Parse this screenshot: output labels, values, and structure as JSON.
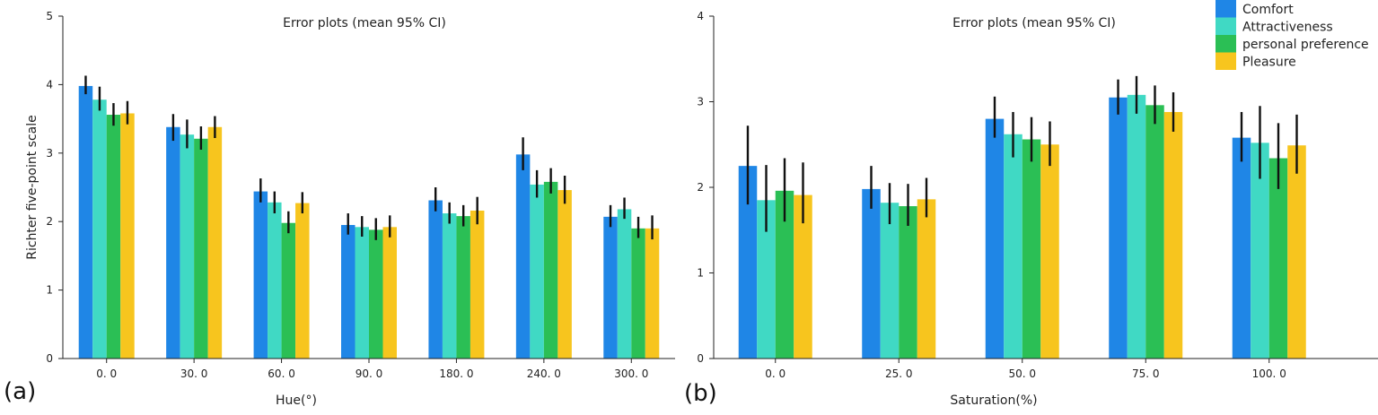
{
  "colors": {
    "Comfort": "#1f86e6",
    "Attractiveness": "#40d9c4",
    "personal preference": "#2bbf55",
    "Pleasure": "#f7c51e",
    "errorbar": "#111111",
    "axis": "#222222"
  },
  "panels": [
    {
      "label": "(a)"
    },
    {
      "label": "(b)"
    }
  ],
  "chart_data": [
    {
      "type": "bar",
      "title": "Error plots (mean 95% CI)",
      "xlabel": "Hue(°)",
      "ylabel": "Richter five-point scale",
      "ylim": [
        0,
        5
      ],
      "yticks": [
        "0",
        "1",
        "2",
        "3",
        "4",
        "5"
      ],
      "categories": [
        "0. 0",
        "30. 0",
        "60. 0",
        "90. 0",
        "180. 0",
        "240. 0",
        "300. 0"
      ],
      "series": [
        {
          "name": "Comfort",
          "values": [
            3.98,
            3.38,
            2.44,
            1.95,
            2.31,
            2.98,
            2.07
          ],
          "ci_low": [
            3.86,
            3.18,
            2.28,
            1.81,
            2.15,
            2.75,
            1.92
          ],
          "ci_high": [
            4.13,
            3.57,
            2.63,
            2.12,
            2.5,
            3.23,
            2.24
          ]
        },
        {
          "name": "Attractiveness",
          "values": [
            3.78,
            3.27,
            2.28,
            1.92,
            2.12,
            2.54,
            2.18
          ],
          "ci_low": [
            3.62,
            3.07,
            2.12,
            1.78,
            1.97,
            2.35,
            2.04
          ],
          "ci_high": [
            3.97,
            3.49,
            2.44,
            2.08,
            2.28,
            2.75,
            2.35
          ]
        },
        {
          "name": "personal preference",
          "values": [
            3.56,
            3.21,
            1.98,
            1.88,
            2.08,
            2.58,
            1.9
          ],
          "ci_low": [
            3.4,
            3.05,
            1.83,
            1.73,
            1.93,
            2.41,
            1.76
          ],
          "ci_high": [
            3.73,
            3.39,
            2.15,
            2.05,
            2.24,
            2.78,
            2.07
          ]
        },
        {
          "name": "Pleasure",
          "values": [
            3.58,
            3.38,
            2.27,
            1.92,
            2.16,
            2.46,
            1.9
          ],
          "ci_low": [
            3.42,
            3.22,
            2.12,
            1.77,
            1.96,
            2.26,
            1.74
          ],
          "ci_high": [
            3.76,
            3.54,
            2.43,
            2.09,
            2.36,
            2.67,
            2.09
          ]
        }
      ],
      "legend": "none",
      "grid": false
    },
    {
      "type": "bar",
      "title": "Error plots (mean 95% CI)",
      "xlabel": "Saturation(%)",
      "ylabel": "",
      "ylim": [
        0,
        4
      ],
      "yticks": [
        "0",
        "1",
        "2",
        "3",
        "4"
      ],
      "categories": [
        "0. 0",
        "25. 0",
        "50. 0",
        "75. 0",
        "100. 0"
      ],
      "series": [
        {
          "name": "Comfort",
          "values": [
            2.25,
            1.98,
            2.8,
            3.05,
            2.58
          ],
          "ci_low": [
            1.8,
            1.75,
            2.58,
            2.85,
            2.3
          ],
          "ci_high": [
            2.72,
            2.25,
            3.06,
            3.26,
            2.88
          ]
        },
        {
          "name": "Attractiveness",
          "values": [
            1.85,
            1.82,
            2.62,
            3.08,
            2.52
          ],
          "ci_low": [
            1.48,
            1.57,
            2.35,
            2.86,
            2.1
          ],
          "ci_high": [
            2.26,
            2.05,
            2.88,
            3.3,
            2.95
          ]
        },
        {
          "name": "personal preference",
          "values": [
            1.96,
            1.78,
            2.56,
            2.96,
            2.34
          ],
          "ci_low": [
            1.6,
            1.55,
            2.3,
            2.74,
            1.98
          ],
          "ci_high": [
            2.34,
            2.04,
            2.82,
            3.19,
            2.75
          ]
        },
        {
          "name": "Pleasure",
          "values": [
            1.91,
            1.86,
            2.5,
            2.88,
            2.49
          ],
          "ci_low": [
            1.58,
            1.65,
            2.25,
            2.65,
            2.16
          ],
          "ci_high": [
            2.29,
            2.11,
            2.77,
            3.11,
            2.85
          ]
        }
      ],
      "legend": "top-right",
      "grid": false
    }
  ]
}
